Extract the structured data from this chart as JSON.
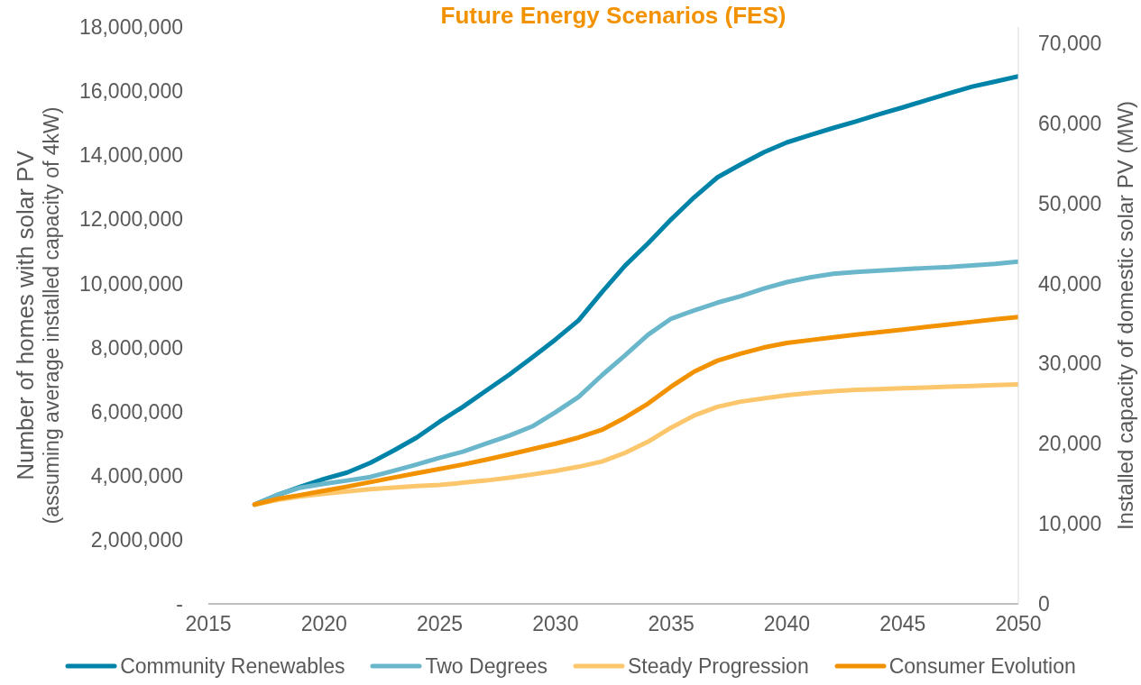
{
  "chart_data": {
    "type": "line",
    "title": "Future Energy Scenarios (FES)",
    "ylabel": "Number of homes with solar PV\n(assuming average installed capacity of 4kW)",
    "y2label": "Installed capacity of domestic solar PV (MW)",
    "x": [
      2017,
      2018,
      2019,
      2020,
      2021,
      2022,
      2023,
      2024,
      2025,
      2026,
      2027,
      2028,
      2029,
      2030,
      2031,
      2032,
      2033,
      2034,
      2035,
      2036,
      2037,
      2038,
      2039,
      2040,
      2041,
      2042,
      2043,
      2044,
      2045,
      2046,
      2047,
      2048,
      2049,
      2050
    ],
    "xlim": [
      2015,
      2050
    ],
    "xticks": [
      2015,
      2020,
      2025,
      2030,
      2035,
      2040,
      2045,
      2050
    ],
    "ylim": [
      0,
      18000000
    ],
    "yticks": [
      {
        "value": 0,
        "label": "-"
      },
      {
        "value": 2000000,
        "label": "2,000,000"
      },
      {
        "value": 4000000,
        "label": "4,000,000"
      },
      {
        "value": 6000000,
        "label": "6,000,000"
      },
      {
        "value": 8000000,
        "label": "8,000,000"
      },
      {
        "value": 10000000,
        "label": "10,000,000"
      },
      {
        "value": 12000000,
        "label": "12,000,000"
      },
      {
        "value": 14000000,
        "label": "14,000,000"
      },
      {
        "value": 16000000,
        "label": "16,000,000"
      },
      {
        "value": 18000000,
        "label": "18,000,000"
      }
    ],
    "y2lim": [
      0,
      72000
    ],
    "y2ticks": [
      0,
      {
        "value": 10000,
        "label": "10,000"
      },
      {
        "value": 20000,
        "label": "20,000"
      },
      {
        "value": 30000,
        "label": "30,000"
      },
      {
        "value": 40000,
        "label": "40,000"
      },
      {
        "value": 50000,
        "label": "50,000"
      },
      {
        "value": 60000,
        "label": "60,000"
      },
      {
        "value": 70000,
        "label": "70,000"
      }
    ],
    "legend": "bottom",
    "series": [
      {
        "name": "Community Renewables",
        "color": "#0083a8",
        "values": [
          3100000,
          3400000,
          3660000,
          3900000,
          4100000,
          4400000,
          4780000,
          5190000,
          5690000,
          6150000,
          6650000,
          7150000,
          7690000,
          8250000,
          8850000,
          9720000,
          10550000,
          11250000,
          12000000,
          12690000,
          13310000,
          13710000,
          14090000,
          14400000,
          14630000,
          14850000,
          15060000,
          15280000,
          15490000,
          15710000,
          15930000,
          16140000,
          16300000,
          16460000
        ]
      },
      {
        "name": "Two Degrees",
        "color": "#6ab7cb",
        "values": [
          3100000,
          3410000,
          3630000,
          3750000,
          3850000,
          3960000,
          4150000,
          4350000,
          4560000,
          4750000,
          5000000,
          5250000,
          5540000,
          5980000,
          6460000,
          7130000,
          7750000,
          8400000,
          8900000,
          9160000,
          9400000,
          9600000,
          9840000,
          10040000,
          10190000,
          10300000,
          10360000,
          10400000,
          10440000,
          10480000,
          10510000,
          10560000,
          10610000,
          10680000
        ]
      },
      {
        "name": "Steady Progression",
        "color": "#fcc66d",
        "values": [
          3100000,
          3250000,
          3350000,
          3440000,
          3510000,
          3580000,
          3630000,
          3680000,
          3710000,
          3780000,
          3850000,
          3940000,
          4040000,
          4150000,
          4280000,
          4440000,
          4710000,
          5060000,
          5500000,
          5880000,
          6150000,
          6310000,
          6410000,
          6510000,
          6580000,
          6640000,
          6680000,
          6700000,
          6730000,
          6750000,
          6780000,
          6800000,
          6830000,
          6850000
        ]
      },
      {
        "name": "Consumer Evolution",
        "color": "#f39200",
        "values": [
          3100000,
          3280000,
          3400000,
          3530000,
          3660000,
          3800000,
          3940000,
          4080000,
          4210000,
          4350000,
          4500000,
          4660000,
          4830000,
          5000000,
          5190000,
          5430000,
          5810000,
          6250000,
          6780000,
          7250000,
          7590000,
          7810000,
          8000000,
          8140000,
          8230000,
          8320000,
          8400000,
          8480000,
          8560000,
          8640000,
          8720000,
          8800000,
          8880000,
          8950000
        ]
      }
    ]
  }
}
